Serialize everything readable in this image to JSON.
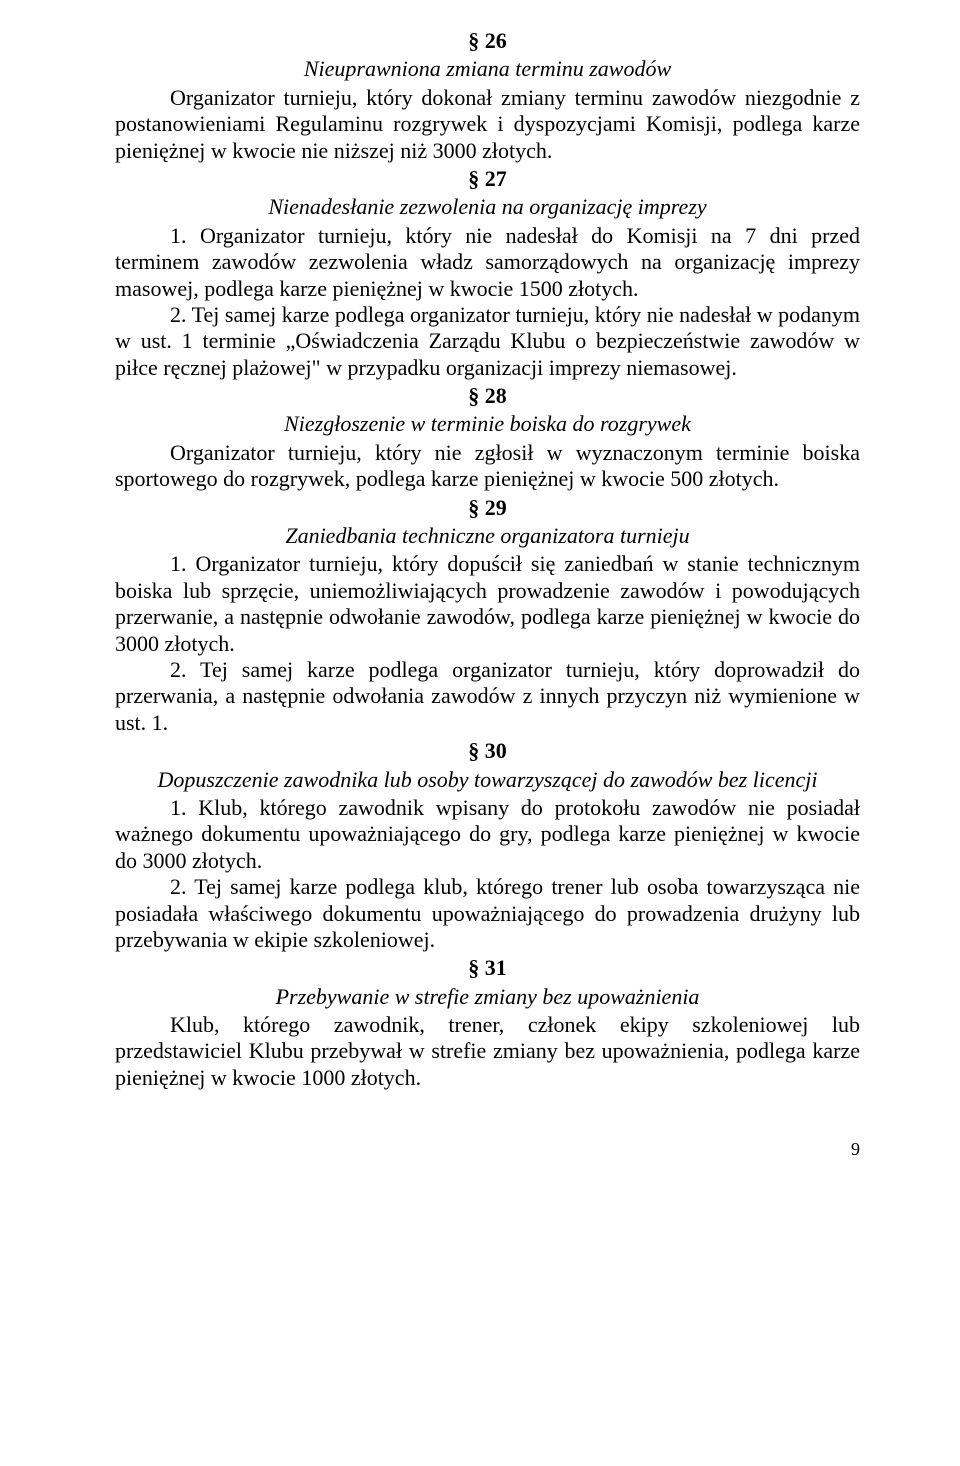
{
  "s26": {
    "number": "§ 26",
    "title": "Nieuprawniona zmiana terminu zawodów",
    "p1": "Organizator turnieju, który dokonał zmiany terminu zawodów niezgodnie z postanowieniami Regulaminu rozgrywek i dyspozycjami Komisji, podlega karze pieniężnej w kwocie nie niższej niż 3000 złotych."
  },
  "s27": {
    "number": "§ 27",
    "title": "Nienadesłanie zezwolenia na organizację imprezy",
    "p1": "1. Organizator turnieju, który nie nadesłał do Komisji na 7 dni przed terminem zawodów zezwolenia władz samorządowych na organizację imprezy masowej, podlega karze pieniężnej w kwocie 1500 złotych.",
    "p2": "2. Tej samej karze podlega organizator turnieju, który nie nadesłał w podanym w ust. 1 terminie „Oświadczenia Zarządu Klubu o bezpieczeństwie zawodów w piłce ręcznej plażowej\" w przypadku organizacji imprezy niemasowej."
  },
  "s28": {
    "number": "§ 28",
    "title": "Niezgłoszenie w terminie boiska  do rozgrywek",
    "p1": "Organizator turnieju, który nie zgłosił w wyznaczonym terminie boiska sportowego do rozgrywek, podlega karze pieniężnej w kwocie 500 złotych."
  },
  "s29": {
    "number": "§ 29",
    "title": "Zaniedbania techniczne organizatora turnieju",
    "p1": "1. Organizator turnieju, który dopuścił się zaniedbań w stanie technicznym boiska lub sprzęcie, uniemożliwiających prowadzenie zawodów i powodujących przerwanie, a następnie odwołanie zawodów, podlega karze pieniężnej w kwocie do 3000 złotych.",
    "p2": "2. Tej samej karze podlega organizator turnieju, który doprowadził do przerwania, a następnie odwołania zawodów z innych przyczyn niż wymienione w ust. 1."
  },
  "s30": {
    "number": "§ 30",
    "title": "Dopuszczenie zawodnika lub osoby towarzyszącej do zawodów bez licencji",
    "p1": "1. Klub, którego zawodnik wpisany do protokołu zawodów nie posiadał ważnego dokumentu upoważniającego do gry, podlega karze pieniężnej w kwocie do 3000 złotych.",
    "p2": "2. Tej samej karze podlega klub, którego trener lub osoba towarzysząca nie posiadała właściwego dokumentu upoważniającego do prowadzenia drużyny lub przebywania w ekipie szkoleniowej."
  },
  "s31": {
    "number": "§ 31",
    "title": "Przebywanie w strefie zmiany bez upoważnienia",
    "p1": "Klub, którego zawodnik, trener, członek ekipy szkoleniowej lub przedstawiciel Klubu przebywał w strefie zmiany bez upoważnienia, podlega karze pieniężnej w kwocie 1000 złotych."
  },
  "pageNumber": "9"
}
